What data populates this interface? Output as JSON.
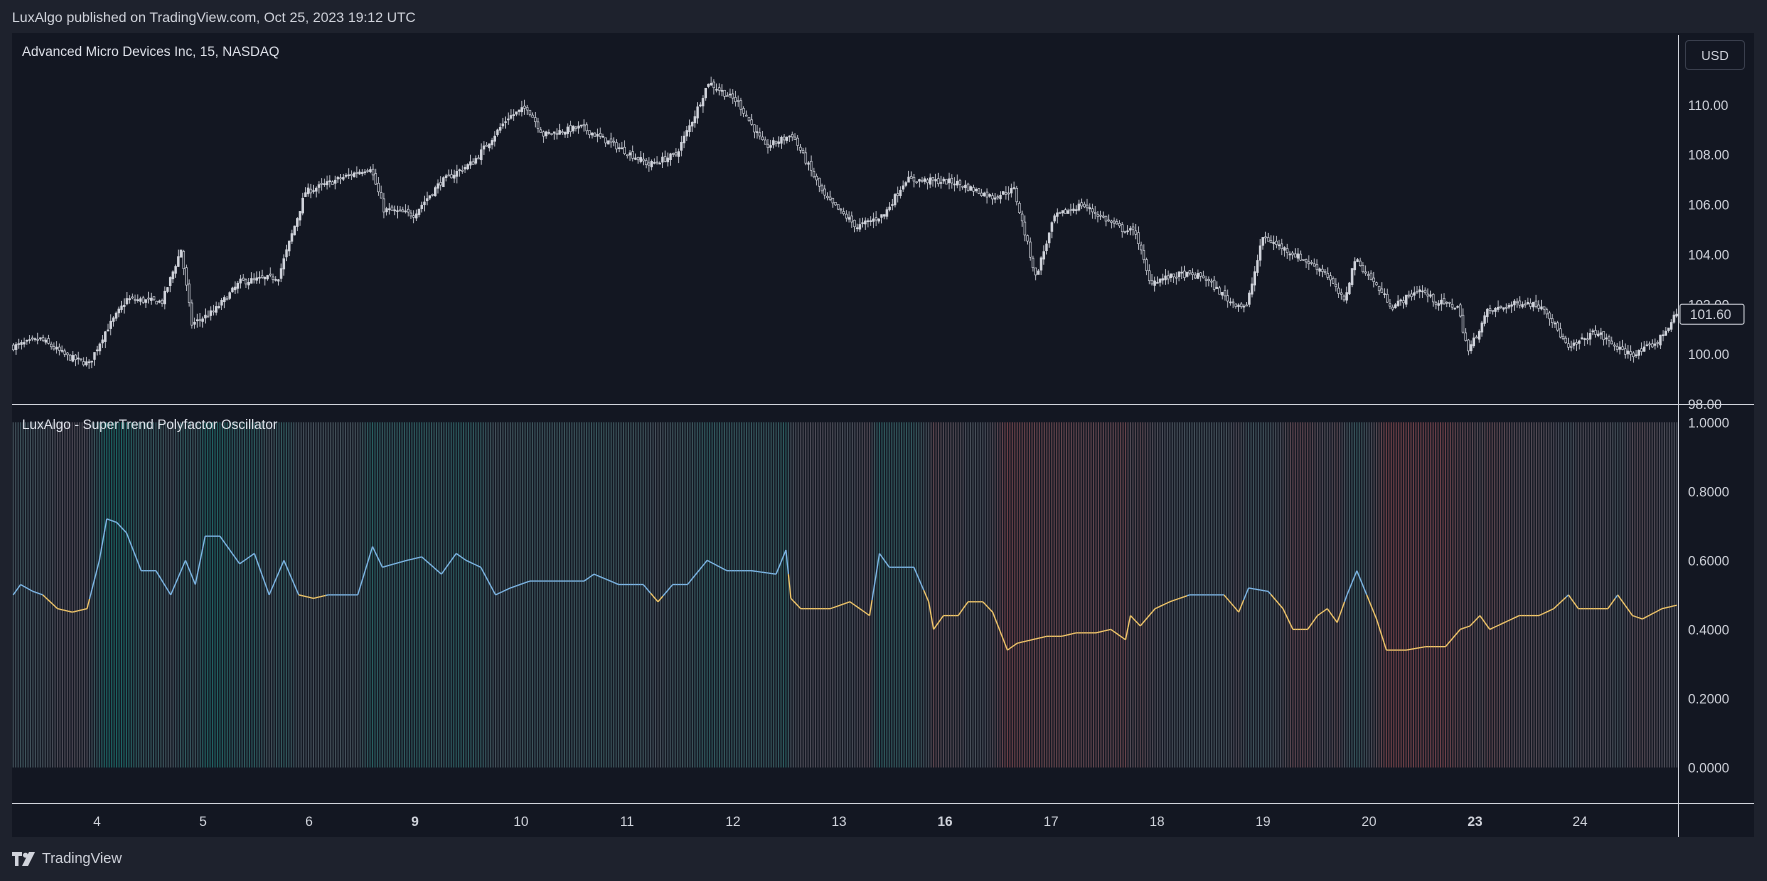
{
  "header": {
    "caption": "LuxAlgo published on TradingView.com, Oct 25, 2023 19:12 UTC"
  },
  "price_pane": {
    "legend": "Advanced Micro Devices Inc, 15, NASDAQ",
    "currency_button": "USD",
    "last_price_label": "101.60"
  },
  "oscillator_pane": {
    "legend": "LuxAlgo - SuperTrend Polyfactor Oscillator"
  },
  "footer": {
    "brand": "TradingView"
  },
  "colors": {
    "background": "#131722",
    "outer": "#1e222d",
    "candle": "#d1d4dc",
    "teal": "#26a69a",
    "red": "#ef5350",
    "line_bull": "#7fb8e8",
    "line_bear": "#f3c86a"
  },
  "chart_data": [
    {
      "type": "candlestick",
      "title": "Advanced Micro Devices Inc, 15, NASDAQ",
      "y_ticks": [
        "110.00",
        "108.00",
        "106.00",
        "104.00",
        "102.00",
        "100.00",
        "98.00"
      ],
      "ylim": [
        98,
        112.8
      ],
      "x_ticks": [
        "4",
        "5",
        "6",
        "9",
        "10",
        "11",
        "12",
        "13",
        "16",
        "17",
        "18",
        "19",
        "20",
        "23",
        "24"
      ],
      "x_ticks_bold": [
        "9",
        "16",
        "23"
      ],
      "last_price": 101.6,
      "close_anchors": [
        [
          0,
          100.3
        ],
        [
          10,
          100.6
        ],
        [
          20,
          99.9
        ],
        [
          28,
          99.6
        ],
        [
          34,
          100.9
        ],
        [
          42,
          102.2
        ],
        [
          55,
          102.1
        ],
        [
          62,
          104.2
        ],
        [
          66,
          101.2
        ],
        [
          74,
          101.7
        ],
        [
          84,
          102.9
        ],
        [
          98,
          103.1
        ],
        [
          108,
          106.5
        ],
        [
          120,
          107.0
        ],
        [
          132,
          107.5
        ],
        [
          137,
          105.8
        ],
        [
          148,
          105.6
        ],
        [
          158,
          106.9
        ],
        [
          170,
          107.7
        ],
        [
          183,
          109.5
        ],
        [
          190,
          109.9
        ],
        [
          196,
          108.8
        ],
        [
          210,
          109.1
        ],
        [
          222,
          108.4
        ],
        [
          235,
          107.6
        ],
        [
          245,
          108.0
        ],
        [
          252,
          109.6
        ],
        [
          257,
          110.9
        ],
        [
          268,
          110.1
        ],
        [
          278,
          108.3
        ],
        [
          288,
          108.8
        ],
        [
          300,
          106.3
        ],
        [
          312,
          105.1
        ],
        [
          322,
          105.6
        ],
        [
          330,
          107.0
        ],
        [
          348,
          106.9
        ],
        [
          362,
          106.3
        ],
        [
          370,
          106.6
        ],
        [
          378,
          103.1
        ],
        [
          385,
          105.5
        ],
        [
          395,
          106.0
        ],
        [
          410,
          105.0
        ],
        [
          415,
          104.9
        ],
        [
          420,
          102.9
        ],
        [
          432,
          103.2
        ],
        [
          440,
          103.1
        ],
        [
          450,
          102.1
        ],
        [
          456,
          101.9
        ],
        [
          462,
          104.7
        ],
        [
          472,
          104.1
        ],
        [
          485,
          103.3
        ],
        [
          492,
          102.1
        ],
        [
          496,
          103.8
        ],
        [
          500,
          103.3
        ],
        [
          510,
          101.9
        ],
        [
          520,
          102.6
        ],
        [
          526,
          102.1
        ],
        [
          534,
          101.9
        ],
        [
          538,
          100.1
        ],
        [
          545,
          101.7
        ],
        [
          558,
          102.1
        ],
        [
          566,
          101.9
        ],
        [
          575,
          100.2
        ],
        [
          585,
          100.9
        ],
        [
          595,
          100.1
        ],
        [
          600,
          100.0
        ],
        [
          608,
          100.5
        ],
        [
          615,
          101.6
        ]
      ],
      "candle_count": 616
    },
    {
      "type": "line",
      "title": "LuxAlgo - SuperTrend Polyfactor Oscillator",
      "y_ticks": [
        "1.0000",
        "0.8000",
        "0.6000",
        "0.4000",
        "0.2000",
        "0.0000"
      ],
      "ylim": [
        -0.1,
        1.05
      ],
      "histogram": "vertical columns from 0 to 1 colored teal (bullish) to red (bearish)",
      "series_anchors": [
        [
          0,
          0.5
        ],
        [
          3,
          0.53
        ],
        [
          8,
          0.51
        ],
        [
          12,
          0.5
        ],
        [
          18,
          0.46
        ],
        [
          24,
          0.45
        ],
        [
          30,
          0.46
        ],
        [
          35,
          0.6
        ],
        [
          38,
          0.72
        ],
        [
          42,
          0.71
        ],
        [
          46,
          0.68
        ],
        [
          52,
          0.57
        ],
        [
          58,
          0.57
        ],
        [
          64,
          0.5
        ],
        [
          70,
          0.6
        ],
        [
          74,
          0.53
        ],
        [
          78,
          0.67
        ],
        [
          84,
          0.67
        ],
        [
          92,
          0.59
        ],
        [
          98,
          0.62
        ],
        [
          104,
          0.5
        ],
        [
          110,
          0.6
        ],
        [
          116,
          0.5
        ],
        [
          122,
          0.49
        ],
        [
          128,
          0.5
        ],
        [
          136,
          0.5
        ],
        [
          140,
          0.5
        ],
        [
          146,
          0.64
        ],
        [
          150,
          0.58
        ],
        [
          160,
          0.6
        ],
        [
          166,
          0.61
        ],
        [
          174,
          0.56
        ],
        [
          180,
          0.62
        ],
        [
          184,
          0.6
        ],
        [
          190,
          0.58
        ],
        [
          196,
          0.5
        ],
        [
          202,
          0.52
        ],
        [
          210,
          0.54
        ],
        [
          220,
          0.54
        ],
        [
          232,
          0.54
        ],
        [
          236,
          0.56
        ],
        [
          246,
          0.53
        ],
        [
          256,
          0.53
        ],
        [
          262,
          0.48
        ],
        [
          268,
          0.53
        ],
        [
          274,
          0.53
        ],
        [
          282,
          0.6
        ],
        [
          290,
          0.57
        ],
        [
          300,
          0.57
        ],
        [
          310,
          0.56
        ],
        [
          314,
          0.63
        ],
        [
          316,
          0.49
        ],
        [
          320,
          0.46
        ],
        [
          326,
          0.46
        ],
        [
          332,
          0.46
        ],
        [
          340,
          0.48
        ],
        [
          348,
          0.44
        ],
        [
          352,
          0.62
        ],
        [
          356,
          0.58
        ],
        [
          366,
          0.58
        ],
        [
          372,
          0.48
        ],
        [
          374,
          0.4
        ],
        [
          378,
          0.44
        ],
        [
          384,
          0.44
        ],
        [
          388,
          0.48
        ],
        [
          394,
          0.48
        ],
        [
          398,
          0.45
        ],
        [
          404,
          0.34
        ],
        [
          408,
          0.36
        ],
        [
          414,
          0.37
        ],
        [
          420,
          0.38
        ],
        [
          426,
          0.38
        ],
        [
          432,
          0.39
        ],
        [
          440,
          0.39
        ],
        [
          446,
          0.4
        ],
        [
          452,
          0.37
        ],
        [
          454,
          0.44
        ],
        [
          458,
          0.41
        ],
        [
          464,
          0.46
        ],
        [
          470,
          0.48
        ],
        [
          478,
          0.5
        ],
        [
          492,
          0.5
        ],
        [
          498,
          0.45
        ],
        [
          502,
          0.52
        ],
        [
          510,
          0.51
        ],
        [
          516,
          0.46
        ],
        [
          520,
          0.4
        ],
        [
          526,
          0.4
        ],
        [
          530,
          0.44
        ],
        [
          534,
          0.46
        ],
        [
          538,
          0.42
        ],
        [
          542,
          0.5
        ],
        [
          546,
          0.57
        ],
        [
          550,
          0.5
        ],
        [
          554,
          0.43
        ],
        [
          558,
          0.34
        ],
        [
          566,
          0.34
        ],
        [
          574,
          0.35
        ],
        [
          582,
          0.35
        ],
        [
          588,
          0.4
        ],
        [
          592,
          0.41
        ],
        [
          596,
          0.44
        ],
        [
          600,
          0.4
        ],
        [
          606,
          0.42
        ],
        [
          612,
          0.44
        ],
        [
          620,
          0.44
        ],
        [
          626,
          0.46
        ],
        [
          632,
          0.5
        ],
        [
          636,
          0.46
        ],
        [
          640,
          0.46
        ],
        [
          648,
          0.46
        ],
        [
          652,
          0.5
        ],
        [
          658,
          0.44
        ],
        [
          662,
          0.43
        ],
        [
          670,
          0.46
        ],
        [
          676,
          0.47
        ]
      ],
      "point_count": 677
    }
  ]
}
